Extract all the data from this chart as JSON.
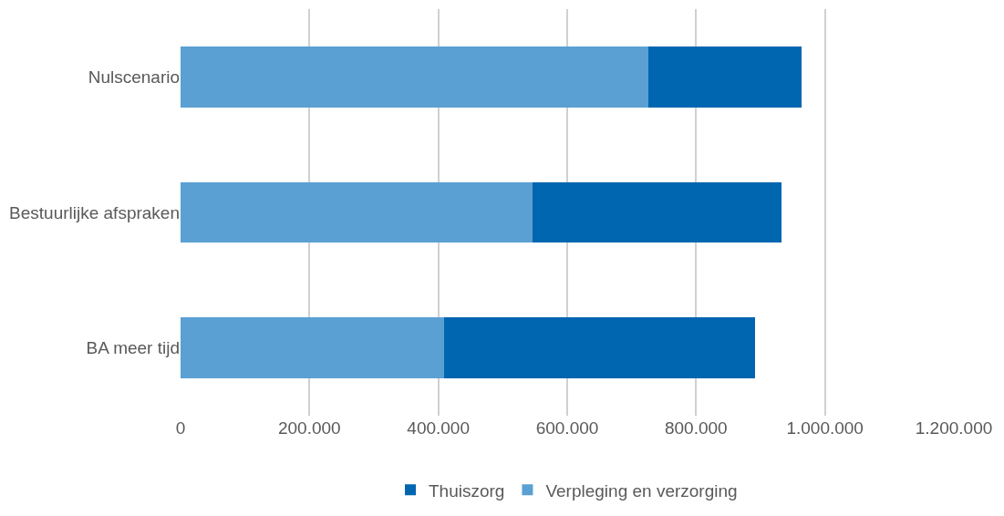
{
  "chart_data": {
    "type": "bar",
    "orientation": "horizontal",
    "stacked": true,
    "categories": [
      "Nulscenario",
      "Bestuurlijke afspraken",
      "BA meer tijd"
    ],
    "series": [
      {
        "name": "Verpleging en verzorging",
        "color": "#5aa0d3",
        "values": [
          726000,
          546000,
          409000
        ]
      },
      {
        "name": "Thuiszorg",
        "color": "#0066b0",
        "values": [
          238000,
          387000,
          482000
        ]
      }
    ],
    "xlim": [
      0,
      1200000
    ],
    "xticks": [
      0,
      {
        "value": 200000,
        "label": "200.000"
      },
      {
        "value": 400000,
        "label": "400.000"
      },
      {
        "value": 600000,
        "label": "600.000"
      },
      {
        "value": 800000,
        "label": "800.000"
      },
      {
        "value": 1000000,
        "label": "1.000.000"
      },
      {
        "value": 1200000,
        "label": "1.200.000"
      }
    ],
    "grid": "x",
    "legend": "bottom"
  }
}
